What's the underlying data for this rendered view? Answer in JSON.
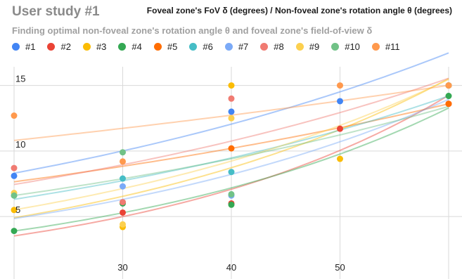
{
  "chart_data": {
    "type": "scatter",
    "title": "User study #1",
    "axis_caption": "Foveal zone's FoV δ (degrees) / Non-foveal zone's rotation angle θ (degrees)",
    "subtitle": "Finding optimal non-foveal zone's rotation angle θ and foveal zone's field-of-view δ",
    "xlim": [
      20,
      60
    ],
    "ylim": [
      0.5,
      17.5
    ],
    "x_ticks": [
      {
        "value": 30,
        "label": "30"
      },
      {
        "value": 40,
        "label": "40"
      },
      {
        "value": 50,
        "label": "50"
      }
    ],
    "y_ticks": [
      {
        "value": 5,
        "label": "5"
      },
      {
        "value": 10,
        "label": "10"
      },
      {
        "value": 15,
        "label": "15"
      }
    ],
    "grid": true,
    "trendlines": "exponential",
    "legend_position": "top",
    "series": [
      {
        "name": "#1",
        "color": "#4285F4",
        "points": [
          [
            20,
            8.1
          ],
          [
            40,
            13.0
          ],
          [
            50,
            13.8
          ]
        ]
      },
      {
        "name": "#2",
        "color": "#EA4335",
        "points": [
          [
            30,
            5.3
          ],
          [
            40,
            6.0
          ],
          [
            50,
            11.7
          ],
          [
            60,
            13.6
          ]
        ]
      },
      {
        "name": "#3",
        "color": "#FBBC04",
        "points": [
          [
            20,
            5.5
          ],
          [
            30,
            4.2
          ],
          [
            40,
            15.0
          ],
          [
            50,
            9.4
          ]
        ]
      },
      {
        "name": "#4",
        "color": "#34A853",
        "points": [
          [
            20,
            3.9
          ],
          [
            30,
            6.0
          ],
          [
            40,
            5.9
          ],
          [
            60,
            14.2
          ]
        ]
      },
      {
        "name": "#5",
        "color": "#FF6D01",
        "points": [
          [
            40,
            10.2
          ],
          [
            60,
            13.6
          ]
        ]
      },
      {
        "name": "#6",
        "color": "#46BDC6",
        "points": [
          [
            20,
            6.6
          ],
          [
            30,
            7.9
          ],
          [
            40,
            8.4
          ],
          [
            60,
            15.0
          ]
        ]
      },
      {
        "name": "#7",
        "color": "#7BAAF7",
        "points": [
          [
            30,
            7.3
          ],
          [
            40,
            6.6
          ],
          [
            60,
            15.0
          ]
        ]
      },
      {
        "name": "#8",
        "color": "#F07B72",
        "points": [
          [
            20,
            8.7
          ],
          [
            30,
            6.1
          ],
          [
            40,
            14.0
          ],
          [
            60,
            15.0
          ]
        ]
      },
      {
        "name": "#9",
        "color": "#FCD04F",
        "points": [
          [
            20,
            6.8
          ],
          [
            30,
            4.4
          ],
          [
            40,
            12.5
          ],
          [
            60,
            15.0
          ]
        ]
      },
      {
        "name": "#10",
        "color": "#71C287",
        "points": [
          [
            20,
            6.6
          ],
          [
            30,
            9.9
          ],
          [
            40,
            6.7
          ],
          [
            60,
            15.0
          ]
        ]
      },
      {
        "name": "#11",
        "color": "#FF994D",
        "points": [
          [
            20,
            12.7
          ],
          [
            30,
            9.2
          ],
          [
            50,
            15.0
          ],
          [
            60,
            15.0
          ]
        ]
      }
    ]
  }
}
